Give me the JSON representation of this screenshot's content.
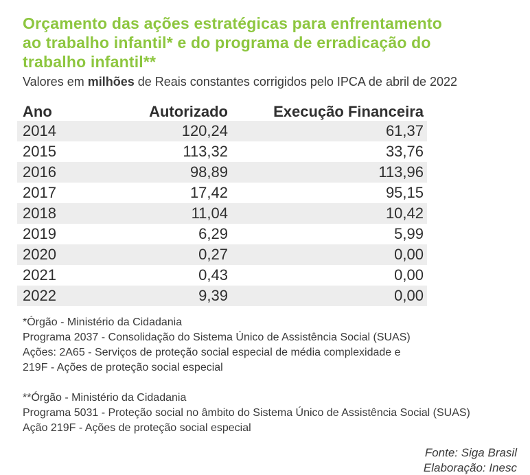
{
  "title": {
    "lines": [
      "Orçamento das ações estratégicas para enfrentamento",
      "ao trabalho infantil* e do programa de erradicação do",
      "trabalho infantil**"
    ]
  },
  "subtitle": {
    "prefix": "Valores em ",
    "bold": "milhões",
    "suffix": " de Reais constantes corrigidos pelo IPCA de abril de 2022"
  },
  "colors": {
    "title_green": "#8dc63f",
    "row_stripe": "#ededed",
    "text": "#3a3a3a"
  },
  "table": {
    "columns": [
      "Ano",
      "Autorizado",
      "Execução Financeira"
    ],
    "rows": [
      {
        "ano": "2014",
        "autorizado": "120,24",
        "execucao": "61,37"
      },
      {
        "ano": "2015",
        "autorizado": "113,32",
        "execucao": "33,76"
      },
      {
        "ano": "2016",
        "autorizado": "98,89",
        "execucao": "113,96"
      },
      {
        "ano": "2017",
        "autorizado": "17,42",
        "execucao": "95,15"
      },
      {
        "ano": "2018",
        "autorizado": "11,04",
        "execucao": "10,42"
      },
      {
        "ano": "2019",
        "autorizado": "6,29",
        "execucao": "5,99"
      },
      {
        "ano": "2020",
        "autorizado": "0,27",
        "execucao": "0,00"
      },
      {
        "ano": "2021",
        "autorizado": "0,43",
        "execucao": "0,00"
      },
      {
        "ano": "2022",
        "autorizado": "9,39",
        "execucao": "0,00"
      }
    ]
  },
  "footnotes": {
    "block1": {
      "line1": "*Órgão - Ministério da Cidadania",
      "line2": "Programa 2037 - Consolidação do Sistema Único de Assistência Social (SUAS)",
      "line3": "Ações: 2A65 - Serviços de proteção social especial de média complexidade e",
      "line4": "219F - Ações de proteção social especial"
    },
    "block2": {
      "line1": "**Órgão - Ministério da Cidadania",
      "line2": "Programa 5031 - Proteção social no âmbito do Sistema Único de Assistência Social (SUAS)",
      "line3": "Ação 219F - Ações de proteção social especial"
    }
  },
  "source": {
    "fonte": "Fonte: Siga Brasil",
    "elaboracao": "Elaboração: Inesc"
  },
  "chart_data": {
    "type": "table",
    "title": "Orçamento das ações estratégicas para enfrentamento ao trabalho infantil* e do programa de erradicação do trabalho infantil**",
    "subtitle": "Valores em milhões de Reais constantes corrigidos pelo IPCA de abril de 2022",
    "columns": [
      "Ano",
      "Autorizado",
      "Execução Financeira"
    ],
    "categories": [
      "2014",
      "2015",
      "2016",
      "2017",
      "2018",
      "2019",
      "2020",
      "2021",
      "2022"
    ],
    "series": [
      {
        "name": "Autorizado",
        "values": [
          120.24,
          113.32,
          98.89,
          17.42,
          11.04,
          6.29,
          0.27,
          0.43,
          9.39
        ]
      },
      {
        "name": "Execução Financeira",
        "values": [
          61.37,
          33.76,
          113.96,
          95.15,
          10.42,
          5.99,
          0.0,
          0.0,
          0.0
        ]
      }
    ],
    "unit": "milhões de Reais constantes (IPCA abril 2022)",
    "source": "Fonte: Siga Brasil",
    "elaboration": "Elaboração: Inesc",
    "layout_hints": {
      "striped_rows": true,
      "first_data_row_shaded": true,
      "numeric_columns_right_aligned": true
    }
  }
}
